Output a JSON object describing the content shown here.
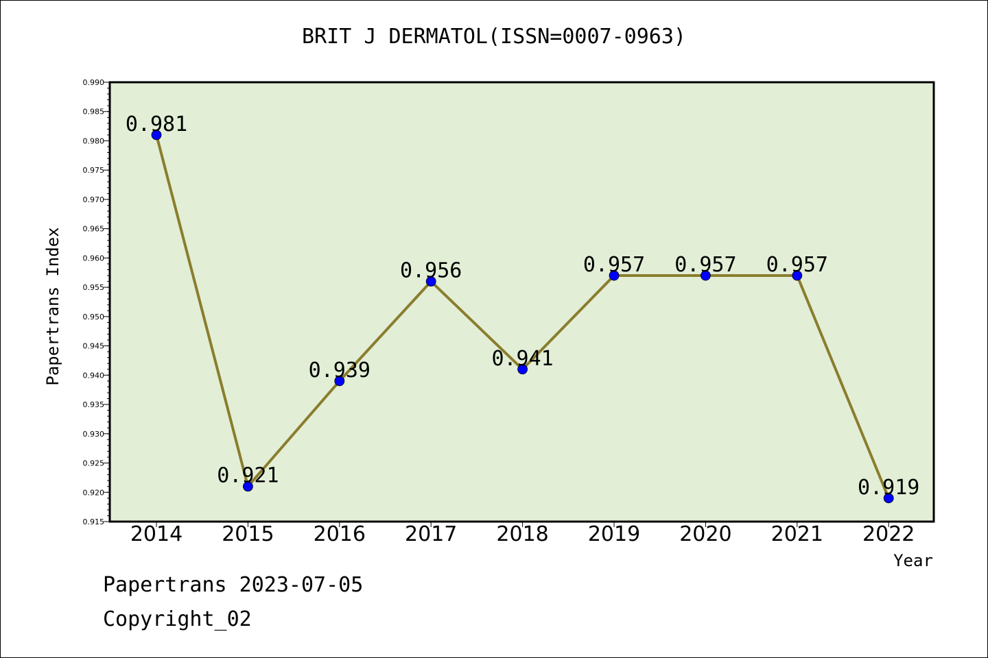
{
  "chart_data": {
    "type": "line",
    "title": "BRIT J DERMATOL(ISSN=0007-0963)",
    "xlabel": "Year",
    "ylabel": "Papertrans Index",
    "categories": [
      "2014",
      "2015",
      "2016",
      "2017",
      "2018",
      "2019",
      "2020",
      "2021",
      "2022"
    ],
    "series": [
      {
        "values": [
          0.981,
          0.921,
          0.939,
          0.956,
          0.941,
          0.957,
          0.957,
          0.957,
          0.919
        ]
      }
    ],
    "data_labels": [
      "0.981",
      "0.921",
      "0.939",
      "0.956",
      "0.941",
      "0.957",
      "0.957",
      "0.957",
      "0.919"
    ],
    "ylim": [
      0.915,
      0.99
    ],
    "yticks": [
      "0.915",
      "0.920",
      "0.925",
      "0.930",
      "0.935",
      "0.940",
      "0.945",
      "0.950",
      "0.955",
      "0.960",
      "0.965",
      "0.970",
      "0.975",
      "0.980",
      "0.985",
      "0.990"
    ],
    "grid": false,
    "legend": "none",
    "colors": {
      "plot_background": "#e2efd6",
      "line": "#8b7d2f",
      "marker": "#0000ff"
    }
  },
  "footer": {
    "line1": "Papertrans 2023-07-05",
    "line2": "Copyright_02"
  }
}
